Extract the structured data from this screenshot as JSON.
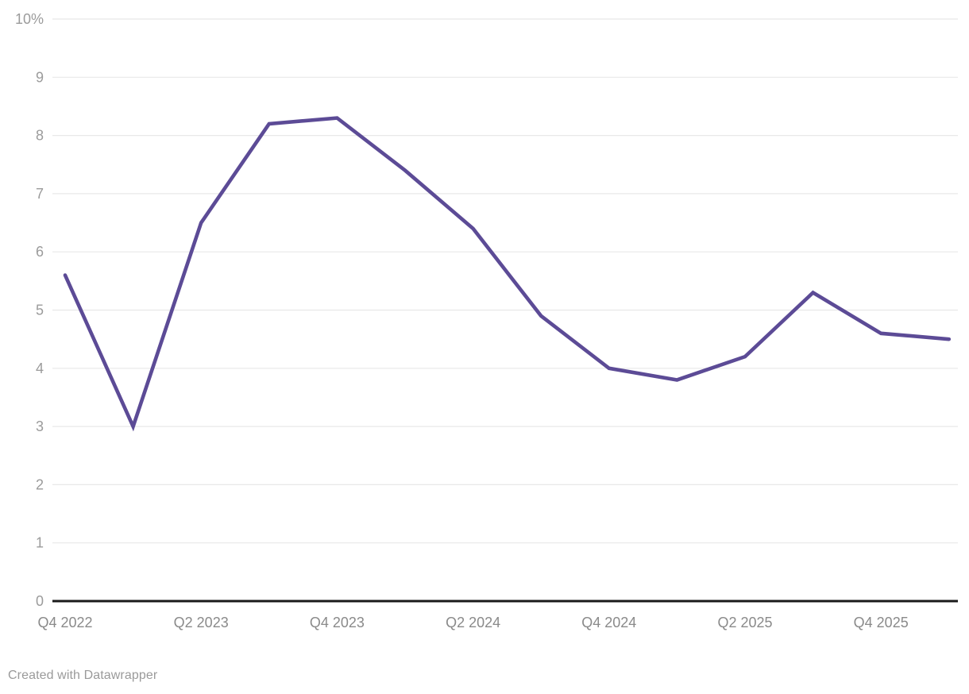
{
  "chart_data": {
    "type": "line",
    "title": "",
    "categories": [
      "Q4 2022",
      "Q1 2023",
      "Q2 2023",
      "Q3 2023",
      "Q4 2023",
      "Q1 2024",
      "Q2 2024",
      "Q3 2024",
      "Q4 2024",
      "Q1 2025",
      "Q2 2025",
      "Q3 2025",
      "Q4 2025",
      "Q1 2026"
    ],
    "values": [
      5.6,
      3.0,
      6.5,
      8.2,
      8.3,
      7.4,
      6.4,
      4.9,
      4.0,
      3.8,
      4.2,
      5.3,
      4.6,
      4.5
    ],
    "unit": "%",
    "ylim": [
      0,
      10
    ],
    "y_ticks": [
      0,
      1,
      2,
      3,
      4,
      5,
      6,
      7,
      8,
      9,
      10
    ],
    "y_tick_labels": [
      "0",
      "1",
      "2",
      "3",
      "4",
      "5",
      "6",
      "7",
      "8",
      "9",
      "10%"
    ],
    "x_tick_indices": [
      0,
      2,
      4,
      6,
      8,
      10,
      12
    ],
    "x_tick_labels": [
      "Q4 2022",
      "Q2 2023",
      "Q4 2023",
      "Q2 2024",
      "Q4 2024",
      "Q2 2025",
      "Q4 2025"
    ],
    "grid": true,
    "legend_position": "none",
    "colors": {
      "line": "#5C4B96",
      "grid": "#E8E8E8",
      "baseline": "#1A1A1A",
      "y_tick_label": "#9B9B9B",
      "x_tick_label": "#8A8A8A"
    }
  },
  "attribution": {
    "text": "Created with Datawrapper"
  }
}
